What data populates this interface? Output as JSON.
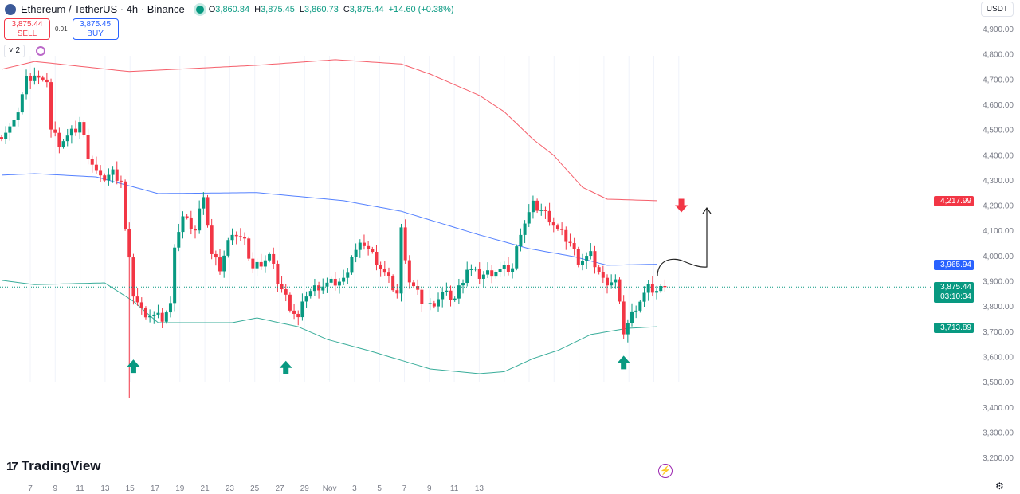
{
  "header": {
    "symbol": "Ethereum / TetherUS · 4h · Binance",
    "open_label": "O",
    "open": "3,860.84",
    "high_label": "H",
    "high": "3,875.45",
    "low_label": "L",
    "low": "3,860.73",
    "close_label": "C",
    "close": "3,875.44",
    "change": "+14.60 (+0.38%)"
  },
  "trade": {
    "sell_price": "3,875.44",
    "sell_label": "SELL",
    "spread": "0.01",
    "buy_price": "3,875.45",
    "buy_label": "BUY"
  },
  "indicators": {
    "collapse_label": "˅ 2"
  },
  "currency": "USDT",
  "brand": "TradingView",
  "brand_mark": "17",
  "price_labels": {
    "upper": "4,217.99",
    "middle": "3,965.94",
    "last": "3,875.44",
    "countdown": "03:10:34",
    "lower": "3,713.89"
  },
  "colors": {
    "up": "#089981",
    "down": "#f23645",
    "upper_band": "#f23645",
    "middle_band": "#2962ff",
    "lower_band": "#089981"
  },
  "chart_data": {
    "type": "candlestick",
    "title": "Ethereum / TetherUS · 4h · Binance",
    "ylim": [
      3150,
      4950
    ],
    "y_ticks": [
      "4,900.00",
      "4,800.00",
      "4,700.00",
      "4,600.00",
      "4,500.00",
      "4,400.00",
      "4,300.00",
      "4,200.00",
      "4,100.00",
      "4,000.00",
      "3,900.00",
      "3,800.00",
      "3,700.00",
      "3,600.00",
      "3,500.00",
      "3,400.00",
      "3,300.00",
      "3,200.00"
    ],
    "x_ticks": [
      "7",
      "9",
      "11",
      "13",
      "15",
      "17",
      "19",
      "21",
      "23",
      "25",
      "27",
      "29",
      "Nov",
      "3",
      "5",
      "7",
      "9",
      "11",
      "13"
    ],
    "close_anchors": [
      [
        0,
        4480
      ],
      [
        3,
        4520
      ],
      [
        6,
        4700
      ],
      [
        8,
        4720
      ],
      [
        10,
        4680
      ],
      [
        11,
        4700
      ],
      [
        12,
        4500
      ],
      [
        14,
        4450
      ],
      [
        16,
        4470
      ],
      [
        18,
        4500
      ],
      [
        19,
        4530
      ],
      [
        21,
        4400
      ],
      [
        24,
        4300
      ],
      [
        27,
        4330
      ],
      [
        29,
        4300
      ],
      [
        30,
        4100
      ],
      [
        32,
        3850
      ],
      [
        34,
        3780
      ],
      [
        37,
        3760
      ],
      [
        39,
        3750
      ],
      [
        41,
        3800
      ],
      [
        42,
        4050
      ],
      [
        44,
        4150
      ],
      [
        47,
        4100
      ],
      [
        49,
        4250
      ],
      [
        51,
        4000
      ],
      [
        53,
        3950
      ],
      [
        56,
        4100
      ],
      [
        59,
        4050
      ],
      [
        61,
        3950
      ],
      [
        65,
        4000
      ],
      [
        67,
        3900
      ],
      [
        70,
        3800
      ],
      [
        72,
        3750
      ],
      [
        74,
        3850
      ],
      [
        77,
        3880
      ],
      [
        83,
        3900
      ],
      [
        85,
        4000
      ],
      [
        88,
        4050
      ],
      [
        91,
        3980
      ],
      [
        94,
        3900
      ],
      [
        96,
        3850
      ],
      [
        97,
        4100
      ],
      [
        99,
        3900
      ],
      [
        102,
        3820
      ],
      [
        104,
        3800
      ],
      [
        107,
        3850
      ],
      [
        110,
        3830
      ],
      [
        113,
        3950
      ],
      [
        116,
        3920
      ],
      [
        120,
        3940
      ],
      [
        124,
        3950
      ],
      [
        126,
        4100
      ],
      [
        129,
        4200
      ],
      [
        131,
        4180
      ],
      [
        133,
        4150
      ],
      [
        135,
        4100
      ],
      [
        138,
        4050
      ],
      [
        140,
        3980
      ],
      [
        143,
        4000
      ],
      [
        146,
        3900
      ],
      [
        149,
        3900
      ],
      [
        151,
        3700
      ],
      [
        154,
        3800
      ],
      [
        157,
        3870
      ],
      [
        159,
        3860
      ],
      [
        161,
        3875
      ]
    ],
    "bollinger": {
      "upper": [
        [
          0,
          4739
        ],
        [
          8,
          4770
        ],
        [
          31,
          4730
        ],
        [
          62,
          4755
        ],
        [
          81,
          4777
        ],
        [
          97,
          4760
        ],
        [
          104,
          4720
        ],
        [
          116,
          4635
        ],
        [
          122,
          4571
        ],
        [
          129,
          4461
        ],
        [
          134,
          4398
        ],
        [
          141,
          4271
        ],
        [
          147,
          4224
        ],
        [
          159,
          4218
        ]
      ],
      "middle": [
        [
          0,
          4319
        ],
        [
          8,
          4325
        ],
        [
          23,
          4312
        ],
        [
          38,
          4246
        ],
        [
          62,
          4250
        ],
        [
          83,
          4218
        ],
        [
          97,
          4176
        ],
        [
          116,
          4082
        ],
        [
          128,
          4028
        ],
        [
          139,
          3996
        ],
        [
          147,
          3962
        ],
        [
          159,
          3966
        ]
      ],
      "lower": [
        [
          0,
          3902
        ],
        [
          8,
          3885
        ],
        [
          25,
          3892
        ],
        [
          32,
          3819
        ],
        [
          38,
          3734
        ],
        [
          56,
          3734
        ],
        [
          62,
          3753
        ],
        [
          72,
          3718
        ],
        [
          79,
          3668
        ],
        [
          89,
          3624
        ],
        [
          104,
          3551
        ],
        [
          116,
          3532
        ],
        [
          122,
          3540
        ],
        [
          129,
          3592
        ],
        [
          135,
          3624
        ],
        [
          143,
          3687
        ],
        [
          152,
          3712
        ],
        [
          159,
          3718
        ]
      ]
    },
    "spike_low": [
      31,
      3435
    ],
    "annotations": [
      {
        "type": "arrow-up",
        "at": [
          32,
          3560
        ]
      },
      {
        "type": "arrow-up",
        "at": [
          69,
          3555
        ]
      },
      {
        "type": "arrow-up",
        "at": [
          151,
          3575
        ]
      },
      {
        "type": "arrow-down",
        "at": [
          165,
          4200
        ]
      }
    ]
  }
}
